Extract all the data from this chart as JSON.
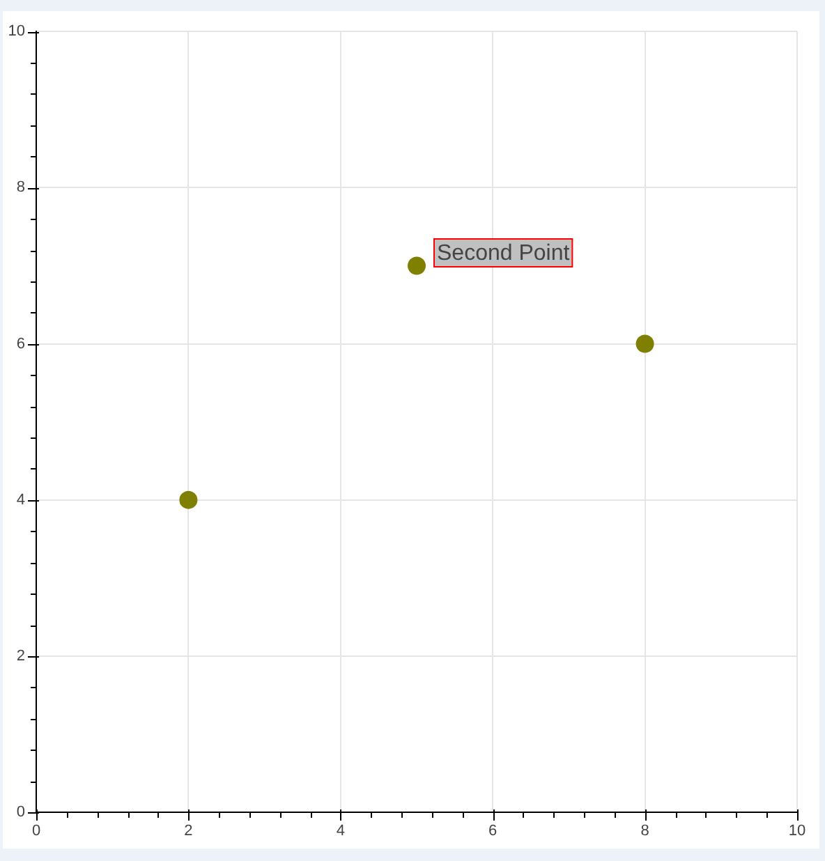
{
  "chart_data": {
    "type": "scatter",
    "x": [
      2,
      5,
      8
    ],
    "values": [
      4,
      7,
      6
    ],
    "color": "#808000",
    "marker": "circle",
    "grid": true,
    "xlim": [
      0,
      10
    ],
    "ylim": [
      0,
      10
    ],
    "xticks": [
      0,
      {
        "value": 0.4,
        "label": null
      },
      {
        "value": 0.8,
        "label": null
      },
      {
        "value": 1.2,
        "label": null
      },
      {
        "value": 1.6,
        "label": null
      },
      2,
      {
        "value": 2.4,
        "label": null
      },
      {
        "value": 2.8,
        "label": null
      },
      {
        "value": 3.2,
        "label": null
      },
      {
        "value": 3.6,
        "label": null
      },
      4,
      {
        "value": 4.4,
        "label": null
      },
      {
        "value": 4.8,
        "label": null
      },
      {
        "value": 5.2,
        "label": null
      },
      {
        "value": 5.6,
        "label": null
      },
      6,
      {
        "value": 6.4,
        "label": null
      },
      {
        "value": 6.8,
        "label": null
      },
      {
        "value": 7.2,
        "label": null
      },
      {
        "value": 7.6,
        "label": null
      },
      8,
      {
        "value": 8.4,
        "label": null
      },
      {
        "value": 8.8,
        "label": null
      },
      {
        "value": 9.2,
        "label": null
      },
      {
        "value": 9.6,
        "label": null
      },
      10
    ],
    "yticks": [
      0,
      {
        "value": 0.4,
        "label": null
      },
      {
        "value": 0.8,
        "label": null
      },
      {
        "value": 1.2,
        "label": null
      },
      {
        "value": 1.6,
        "label": null
      },
      2,
      {
        "value": 2.4,
        "label": null
      },
      {
        "value": 2.8,
        "label": null
      },
      {
        "value": 3.2,
        "label": null
      },
      {
        "value": 3.6,
        "label": null
      },
      4,
      {
        "value": 4.4,
        "label": null
      },
      {
        "value": 4.8,
        "label": null
      },
      {
        "value": 5.2,
        "label": null
      },
      {
        "value": 5.6,
        "label": null
      },
      6,
      {
        "value": 6.4,
        "label": null
      },
      {
        "value": 6.8,
        "label": null
      },
      {
        "value": 7.2,
        "label": null
      },
      {
        "value": 7.6,
        "label": null
      },
      8,
      {
        "value": 8.4,
        "label": null
      },
      {
        "value": 8.8,
        "label": null
      },
      {
        "value": 9.2,
        "label": null
      },
      {
        "value": 9.6,
        "label": null
      },
      10
    ],
    "annotations": [
      {
        "text": "Second Point",
        "x": 5,
        "y": 7
      }
    ]
  }
}
